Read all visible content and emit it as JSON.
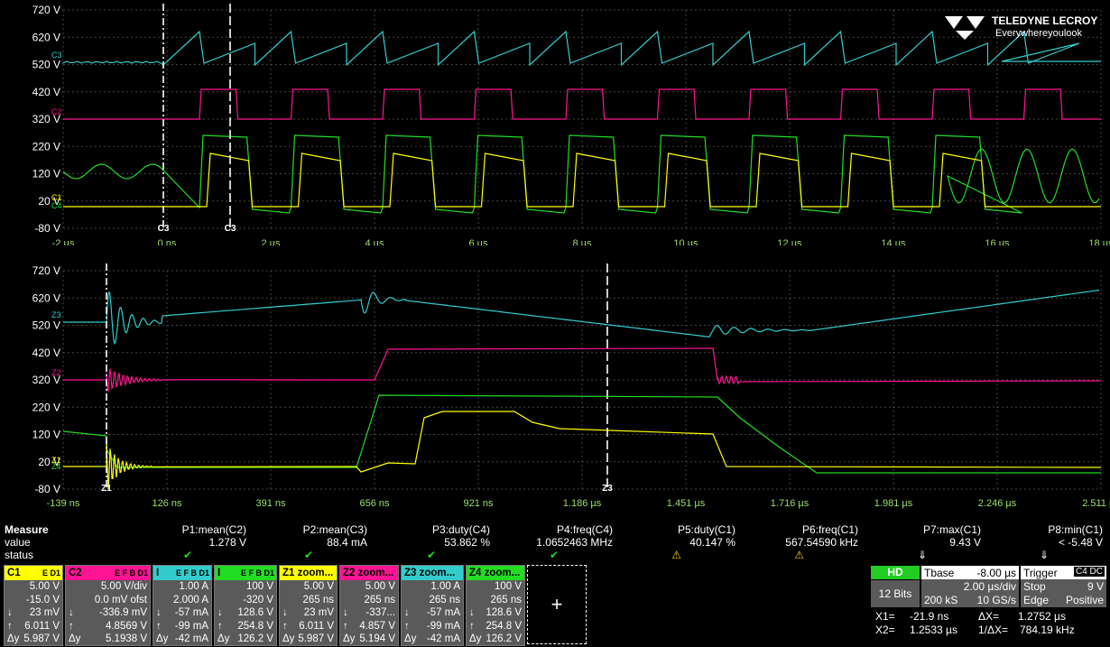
{
  "brand": {
    "name": "TELEDYNE LECROY",
    "tagline": "Everywhereyoulook"
  },
  "top_plot": {
    "y_labels": [
      "720 V",
      "620 V",
      "520 V",
      "420 V",
      "320 V",
      "220 V",
      "120 V",
      "20 V",
      "-80 V"
    ],
    "x_labels": [
      "-2 µs",
      "0 ns",
      "2 µs",
      "4 µs",
      "6 µs",
      "8 µs",
      "10 µs",
      "12 µs",
      "14 µs",
      "16 µs",
      "18 µs"
    ],
    "trace_tags": [
      "C3",
      "C2",
      "C1",
      "C4"
    ],
    "cursor_labels": [
      "C3",
      "C3"
    ]
  },
  "bottom_plot": {
    "y_labels": [
      "720 V",
      "620 V",
      "520 V",
      "420 V",
      "320 V",
      "220 V",
      "120 V",
      "20 V",
      "-80 V"
    ],
    "x_labels": [
      "-139 ns",
      "126 ns",
      "391 ns",
      "656 ns",
      "921 ns",
      "1.186 µs",
      "1.451 µs",
      "1.716 µs",
      "1.981 µs",
      "2.246 µs",
      "2.511 µs"
    ],
    "trace_tags": [
      "Z3",
      "Z2",
      "Z1",
      "Z4"
    ],
    "cursor_labels": [
      "Z1",
      "Z3"
    ]
  },
  "colors": {
    "c1": "#ffff00",
    "c2": "#ff1493",
    "c3": "#33cccc",
    "c4": "#22dd22",
    "grid": "#555555",
    "cursor": "#ffffff"
  },
  "measure": {
    "title": "Measure",
    "row_labels": [
      "value",
      "status"
    ],
    "params": [
      {
        "name": "P1:mean(C2)",
        "value": "1.278 V",
        "status": "check"
      },
      {
        "name": "P2:mean(C3)",
        "value": "88.4 mA",
        "status": "check"
      },
      {
        "name": "P3:duty(C4)",
        "value": "53.862 %",
        "status": "check"
      },
      {
        "name": "P4:freq(C4)",
        "value": "1.0652463 MHz",
        "status": "check"
      },
      {
        "name": "P5:duty(C1)",
        "value": "40.147 %",
        "status": "warn"
      },
      {
        "name": "P6:freq(C1)",
        "value": "567.54590 kHz",
        "status": "warn"
      },
      {
        "name": "P7:max(C1)",
        "value": "9.43 V",
        "status": "down"
      },
      {
        "name": "P8:min(C1)",
        "value": "< -5.48 V",
        "status": "down"
      }
    ]
  },
  "channels": [
    {
      "id": "C1",
      "tags": "E D1",
      "color": "#ffff00",
      "lines": [
        [
          "",
          "5.00 V"
        ],
        [
          "",
          "-15.0 V"
        ],
        [
          "↓",
          "23 mV"
        ],
        [
          "↑",
          "6.011 V"
        ],
        [
          "Δy",
          "5.987 V"
        ]
      ]
    },
    {
      "id": "C2",
      "tags": "E F B D1",
      "color": "#ff1493",
      "lines": [
        [
          "",
          "5.00 V/div"
        ],
        [
          "",
          "0.0 mV ofst"
        ],
        [
          "↓",
          "-336.9 mV"
        ],
        [
          "↑",
          "4.8569 V"
        ],
        [
          "Δy",
          "5.1938 V"
        ]
      ]
    },
    {
      "id": "I",
      "tags": "E F B D1",
      "color": "#33cccc",
      "lines": [
        [
          "",
          "1.00 A"
        ],
        [
          "",
          "2.000 A"
        ],
        [
          "↓",
          "-57 mA"
        ],
        [
          "↑",
          "-99 mA"
        ],
        [
          "Δy",
          "-42 mA"
        ]
      ]
    },
    {
      "id": "I",
      "tags": "E F B D1",
      "color": "#22dd22",
      "lines": [
        [
          "",
          "100 V"
        ],
        [
          "",
          "-320 V"
        ],
        [
          "↓",
          "128.6 V"
        ],
        [
          "↑",
          "254.8 V"
        ],
        [
          "Δy",
          "126.2 V"
        ]
      ]
    },
    {
      "id": "Z1 zoom...",
      "tags": "",
      "color": "#ffff00",
      "lines": [
        [
          "",
          "5.00 V"
        ],
        [
          "",
          "265 ns"
        ],
        [
          "↓",
          "23 mV"
        ],
        [
          "↑",
          "6.011 V"
        ],
        [
          "Δy",
          "5.987 V"
        ]
      ]
    },
    {
      "id": "Z2 zoom...",
      "tags": "",
      "color": "#ff1493",
      "lines": [
        [
          "",
          "5.00 V"
        ],
        [
          "",
          "265 ns"
        ],
        [
          "↓",
          "-337..."
        ],
        [
          "↑",
          "4.857 V"
        ],
        [
          "Δy",
          "5.194 V"
        ]
      ]
    },
    {
      "id": "Z3 zoom...",
      "tags": "",
      "color": "#33cccc",
      "lines": [
        [
          "",
          "1.00 A"
        ],
        [
          "",
          "265 ns"
        ],
        [
          "↓",
          "-57 mA"
        ],
        [
          "↑",
          "-99 mA"
        ],
        [
          "Δy",
          "-42 mA"
        ]
      ]
    },
    {
      "id": "Z4 zoom...",
      "tags": "",
      "color": "#22dd22",
      "lines": [
        [
          "",
          "100 V"
        ],
        [
          "",
          "265 ns"
        ],
        [
          "↓",
          "128.6 V"
        ],
        [
          "↑",
          "254.8 V"
        ],
        [
          "Δy",
          "126.2 V"
        ]
      ]
    }
  ],
  "add_button": "+",
  "acquisition": {
    "hd": "HD",
    "bits": "12 Bits",
    "tbase_label": "Tbase",
    "tbase_value": "-8.00 µs",
    "timediv": "2.00 µs/div",
    "samples": "200 kS",
    "rate": "10 GS/s",
    "trigger_label": "Trigger",
    "trigger_tags": "C4 DC",
    "trigger_mode": "Stop",
    "trigger_level": "9 V",
    "trigger_type": "Edge",
    "trigger_slope": "Positive"
  },
  "cursors": {
    "x1_label": "X1=",
    "x1": "-21.9 ns",
    "dx_label": "ΔX=",
    "dx": "1.2752 µs",
    "x2_label": "X2=",
    "x2": "1.2533 µs",
    "inv_label": "1/ΔX=",
    "inv": "784.19 kHz"
  }
}
